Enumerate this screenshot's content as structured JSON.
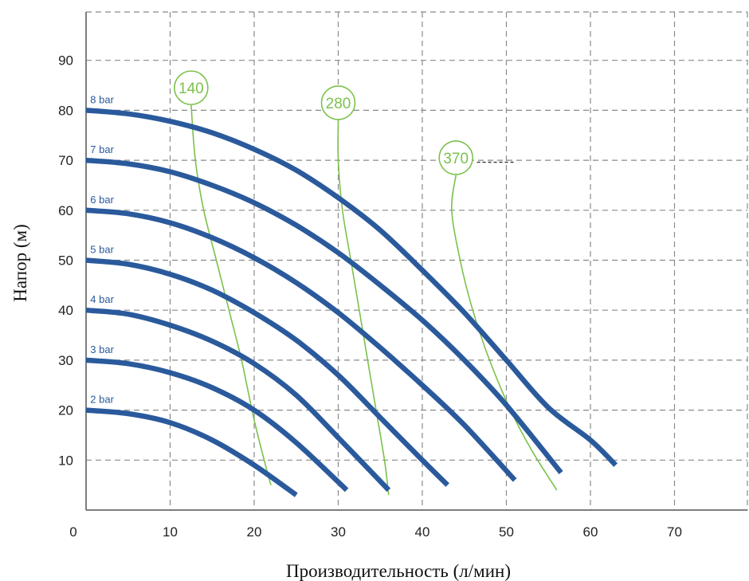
{
  "chart_data": {
    "type": "line",
    "title": "",
    "xlabel": "Производительность (л/мин)",
    "ylabel": "Напор (м)",
    "xlim": [
      0,
      80
    ],
    "ylim": [
      0,
      95
    ],
    "x_ticks": [
      "0",
      "10",
      "20",
      "30",
      "40",
      "50",
      "60",
      "70"
    ],
    "y_ticks": [
      "10",
      "20",
      "30",
      "40",
      "50",
      "60",
      "70",
      "80",
      "90"
    ],
    "grid": true,
    "colors": {
      "pressure": "#2a5a9c",
      "speed": "#7cc14c",
      "grid": "#8a8a8a"
    },
    "series": [
      {
        "name": "2 bar",
        "points": [
          [
            0,
            20
          ],
          [
            5,
            19.3
          ],
          [
            10,
            17.5
          ],
          [
            15,
            14
          ],
          [
            20,
            9
          ],
          [
            25,
            3
          ]
        ]
      },
      {
        "name": "3 bar",
        "points": [
          [
            0,
            30
          ],
          [
            5,
            29.3
          ],
          [
            10,
            27.5
          ],
          [
            15,
            24.5
          ],
          [
            20,
            20
          ],
          [
            25,
            13.5
          ],
          [
            31,
            4
          ]
        ]
      },
      {
        "name": "4 bar",
        "points": [
          [
            0,
            40
          ],
          [
            5,
            39.2
          ],
          [
            10,
            37
          ],
          [
            15,
            33.8
          ],
          [
            20,
            29.3
          ],
          [
            25,
            23
          ],
          [
            30,
            14.5
          ],
          [
            36,
            4
          ]
        ]
      },
      {
        "name": "5 bar",
        "points": [
          [
            0,
            50
          ],
          [
            5,
            49.2
          ],
          [
            10,
            47.2
          ],
          [
            15,
            44
          ],
          [
            20,
            39.5
          ],
          [
            25,
            34
          ],
          [
            30,
            27
          ],
          [
            35,
            18.5
          ],
          [
            40,
            10
          ],
          [
            43,
            5
          ]
        ]
      },
      {
        "name": "6 bar",
        "points": [
          [
            0,
            60
          ],
          [
            5,
            59.3
          ],
          [
            10,
            57.5
          ],
          [
            15,
            54.5
          ],
          [
            20,
            50.5
          ],
          [
            25,
            45.5
          ],
          [
            30,
            39.5
          ],
          [
            35,
            32.5
          ],
          [
            40,
            25
          ],
          [
            45,
            17
          ],
          [
            51,
            6
          ]
        ]
      },
      {
        "name": "7 bar",
        "points": [
          [
            0,
            70
          ],
          [
            5,
            69.3
          ],
          [
            10,
            67.7
          ],
          [
            15,
            65
          ],
          [
            20,
            61.5
          ],
          [
            25,
            57
          ],
          [
            30,
            51.5
          ],
          [
            35,
            45
          ],
          [
            40,
            38
          ],
          [
            45,
            30
          ],
          [
            50,
            21
          ],
          [
            56.5,
            7.5
          ]
        ]
      },
      {
        "name": "8 bar",
        "points": [
          [
            0,
            80
          ],
          [
            5,
            79.3
          ],
          [
            10,
            77.8
          ],
          [
            15,
            75.5
          ],
          [
            20,
            72.2
          ],
          [
            25,
            68
          ],
          [
            30,
            62.5
          ],
          [
            35,
            56
          ],
          [
            40,
            48
          ],
          [
            45,
            39.5
          ],
          [
            50,
            30
          ],
          [
            55,
            20.5
          ],
          [
            60,
            14
          ],
          [
            63,
            9
          ]
        ]
      }
    ],
    "speed_curves": [
      {
        "name": "140",
        "points": [
          [
            12.5,
            81
          ],
          [
            13,
            70
          ],
          [
            14,
            60
          ],
          [
            15.5,
            50
          ],
          [
            17,
            40
          ],
          [
            18.5,
            30
          ],
          [
            20,
            18
          ],
          [
            21.5,
            8
          ],
          [
            22,
            5
          ]
        ]
      },
      {
        "name": "280",
        "points": [
          [
            30,
            78
          ],
          [
            30,
            70
          ],
          [
            30.5,
            60
          ],
          [
            31.5,
            50
          ],
          [
            32.5,
            40
          ],
          [
            33.5,
            30
          ],
          [
            34.5,
            20
          ],
          [
            35.5,
            10
          ],
          [
            36,
            3
          ]
        ]
      },
      {
        "name": "370",
        "points": [
          [
            44,
            67
          ],
          [
            43.5,
            60
          ],
          [
            44.5,
            50
          ],
          [
            46,
            40
          ],
          [
            48,
            30
          ],
          [
            50.5,
            20
          ],
          [
            53,
            12
          ],
          [
            56,
            4
          ]
        ]
      }
    ]
  }
}
